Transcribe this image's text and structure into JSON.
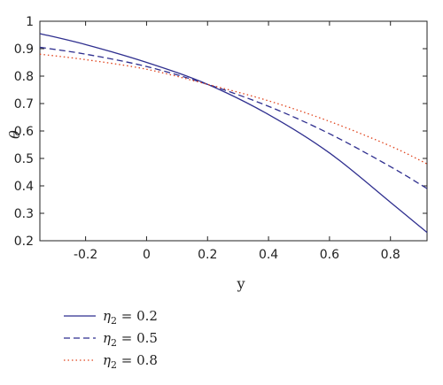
{
  "chart_data": {
    "type": "line",
    "title": "",
    "xlabel": "y",
    "ylabel": "θ",
    "xlim": [
      -0.35,
      0.92
    ],
    "ylim": [
      0.2,
      1.0
    ],
    "xticks": [
      -0.2,
      0,
      0.2,
      0.4,
      0.6,
      0.8
    ],
    "xtick_labels": [
      "-0.2",
      "0",
      "0.2",
      "0.4",
      "0.6",
      "0.8"
    ],
    "yticks": [
      0.2,
      0.3,
      0.4,
      0.5,
      0.6,
      0.7,
      0.8,
      0.9,
      1.0
    ],
    "ytick_labels": [
      "0.2",
      "0.3",
      "0.4",
      "0.5",
      "0.6",
      "0.7",
      "0.8",
      "0.9",
      "1"
    ],
    "grid": false,
    "legend_placement": "below",
    "series": [
      {
        "name": "η2 = 0.2",
        "legend_var": "η",
        "legend_sub": "2",
        "legend_val": " = 0.2",
        "color": "#2f2f8f",
        "dash": "solid",
        "x": [
          -0.35,
          -0.2,
          0.0,
          0.2,
          0.4,
          0.6,
          0.8,
          0.92
        ],
        "y": [
          0.955,
          0.915,
          0.85,
          0.77,
          0.66,
          0.52,
          0.34,
          0.23
        ]
      },
      {
        "name": "η2 = 0.5",
        "legend_var": "η",
        "legend_sub": "2",
        "legend_val": " = 0.5",
        "color": "#2f2f8f",
        "dash": "dashed",
        "x": [
          -0.35,
          -0.2,
          0.0,
          0.2,
          0.4,
          0.6,
          0.8,
          0.92
        ],
        "y": [
          0.905,
          0.88,
          0.835,
          0.77,
          0.69,
          0.59,
          0.47,
          0.39
        ]
      },
      {
        "name": "η2 = 0.8",
        "legend_var": "η",
        "legend_sub": "2",
        "legend_val": " = 0.8",
        "color": "#e0431c",
        "dash": "dotted",
        "x": [
          -0.35,
          -0.2,
          0.0,
          0.2,
          0.4,
          0.6,
          0.8,
          0.92
        ],
        "y": [
          0.88,
          0.86,
          0.825,
          0.77,
          0.71,
          0.635,
          0.545,
          0.48
        ]
      }
    ]
  }
}
